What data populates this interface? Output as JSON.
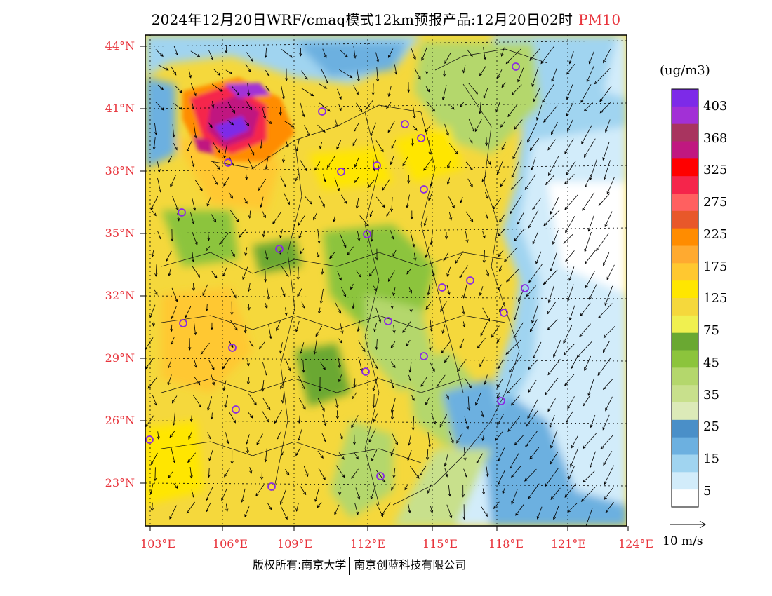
{
  "header": {
    "title": "2024年12月20日WRF/cmaq模式12km预报产品:12月20日02时",
    "pollutant": "PM10"
  },
  "axes": {
    "lat_labels": [
      "44°N",
      "41°N",
      "38°N",
      "35°N",
      "32°N",
      "29°N",
      "26°N",
      "23°N"
    ],
    "lon_labels": [
      "103°E",
      "106°E",
      "109°E",
      "112°E",
      "115°E",
      "118°E",
      "121°E",
      "124°E"
    ]
  },
  "legend": {
    "unit": "(ug/m3)",
    "labels": [
      "403",
      "368",
      "325",
      "275",
      "225",
      "175",
      "125",
      "75",
      "45",
      "35",
      "25",
      "15",
      "5"
    ],
    "colors": [
      "#7d2ae8",
      "#a230d6",
      "#a8345f",
      "#c01880",
      "#ff0000",
      "#f5254b",
      "#ff6060",
      "#e8582a",
      "#ff8c00",
      "#ffaa30",
      "#ffc830",
      "#ffe600",
      "#f5d83c",
      "#f0f050",
      "#6aa832",
      "#8cc43c",
      "#b4d76c",
      "#c8e08c",
      "#dceab8",
      "#4a8fc8",
      "#6cb0e0",
      "#a0d4f0",
      "#d2ecfa",
      "#ffffff"
    ]
  },
  "wind_scale": {
    "label": "10 m/s"
  },
  "footer": {
    "copyright_left": "版权所有:南京大学",
    "copyright_right": "南京创蓝科技有限公司"
  }
}
